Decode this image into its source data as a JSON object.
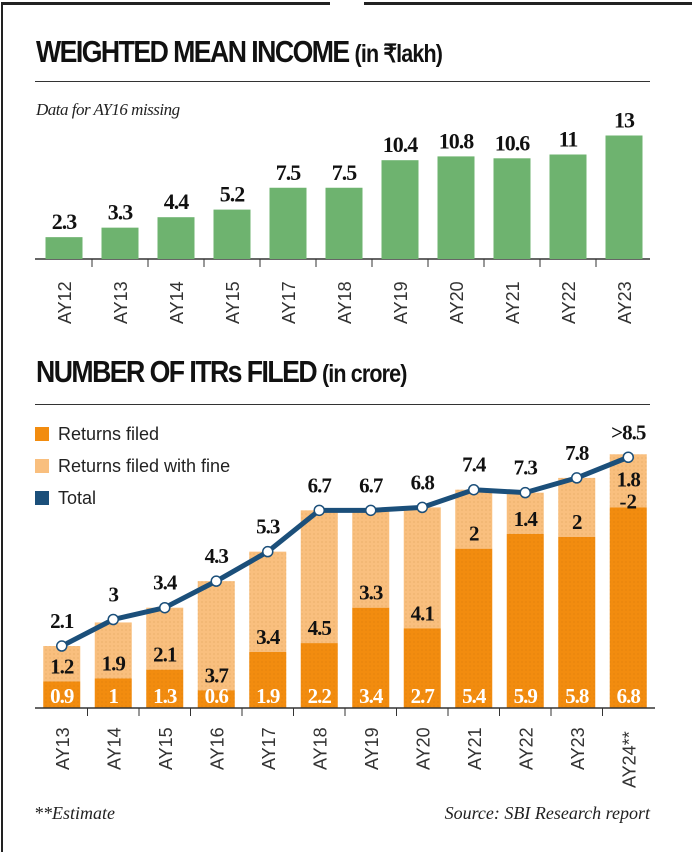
{
  "colors": {
    "income_bar": "#6eb36f",
    "returns_filed": "#f28c0f",
    "returns_fine": "#f9bf7e",
    "total": "#1b4f7a"
  },
  "chart_data": [
    {
      "type": "bar",
      "title": "WEIGHTED MEAN INCOME",
      "title_unit": "(in ₹lakh)",
      "note": "Data for AY16 missing",
      "categories": [
        "AY12",
        "AY13",
        "AY14",
        "AY15",
        "AY17",
        "AY18",
        "AY19",
        "AY20",
        "AY21",
        "AY22",
        "AY23"
      ],
      "values": [
        2.3,
        3.3,
        4.4,
        5.2,
        7.5,
        7.5,
        10.4,
        10.8,
        10.6,
        11,
        13
      ],
      "labels": [
        "2.3",
        "3.3",
        "4.4",
        "5.2",
        "7.5",
        "7.5",
        "10.4",
        "10.8",
        "10.6",
        "11",
        "13"
      ],
      "grid": false
    },
    {
      "type": "bar",
      "stacked": true,
      "title": "NUMBER OF ITRs FILED",
      "title_unit": "(in crore)",
      "categories": [
        "AY13",
        "AY14",
        "AY15",
        "AY16",
        "AY17",
        "AY18",
        "AY19",
        "AY20",
        "AY21",
        "AY22",
        "AY23",
        "AY24**"
      ],
      "legend": {
        "placement": "top-left",
        "entries": [
          "Returns filed",
          "Returns filed with fine",
          "Total"
        ]
      },
      "series": [
        {
          "name": "Returns filed",
          "values": [
            0.9,
            1,
            1.3,
            0.6,
            1.9,
            2.2,
            3.4,
            2.7,
            5.4,
            5.9,
            5.8,
            6.8
          ],
          "labels": [
            "0.9",
            "1",
            "1.3",
            "0.6",
            "1.9",
            "2.2",
            "3.4",
            "2.7",
            "5.4",
            "5.9",
            "5.8",
            "6.8"
          ]
        },
        {
          "name": "Returns filed with fine",
          "values": [
            1.2,
            1.9,
            2.1,
            3.7,
            3.4,
            4.5,
            3.3,
            4.1,
            2,
            1.4,
            2,
            1.8
          ],
          "labels": [
            "1.2",
            "1.9",
            "2.1",
            "3.7",
            "3.4",
            "4.5",
            "3.3",
            "4.1",
            "2",
            "1.4",
            "2",
            "1.8"
          ],
          "extra_label_ay24": "-2"
        },
        {
          "name": "Total",
          "type": "line",
          "values": [
            2.1,
            3,
            3.4,
            4.3,
            5.3,
            6.7,
            6.7,
            6.8,
            7.4,
            7.3,
            7.8,
            8.5
          ],
          "labels": [
            "2.1",
            "3",
            "3.4",
            "4.3",
            "5.3",
            "6.7",
            "6.7",
            "6.8",
            "7.4",
            "7.3",
            "7.8",
            ">8.5"
          ]
        }
      ],
      "grid": false
    }
  ],
  "footer": {
    "note": "**Estimate",
    "source": "Source: SBI Research report"
  }
}
